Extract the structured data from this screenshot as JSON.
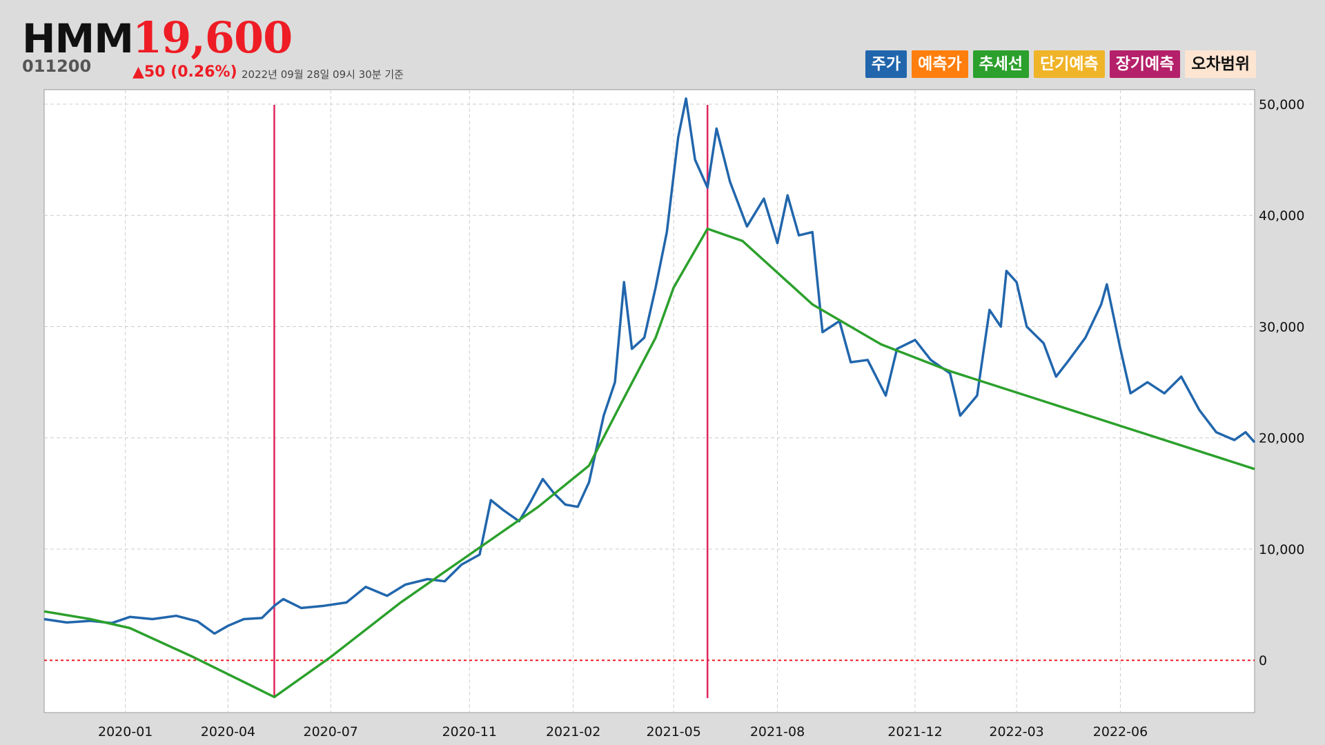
{
  "header": {
    "name": "HMM",
    "price": "19,600",
    "code": "011200",
    "change": "▲50 (0.26%)",
    "asof": "2022년 09월 28일 09시 30분 기준"
  },
  "legend": [
    {
      "label": "주가",
      "color": "#2166ac"
    },
    {
      "label": "예측가",
      "color": "#ff7f0e"
    },
    {
      "label": "추세선",
      "color": "#2ca02c"
    },
    {
      "label": "단기예측",
      "color": "#f0b429"
    },
    {
      "label": "장기예측",
      "color": "#b5206a"
    },
    {
      "label": "오차범위",
      "color": "#fde5d2"
    }
  ],
  "chart_data": {
    "type": "line",
    "x_ticks": [
      "2020-01",
      "2020-04",
      "2020-07",
      "2020-11",
      "2021-02",
      "2021-05",
      "2021-08",
      "2021-12",
      "2022-03",
      "2022-06"
    ],
    "y_ticks": [
      "0",
      "10,000",
      "20,000",
      "30,000",
      "40,000",
      "50,000"
    ],
    "ylim": [
      -4700,
      51300
    ],
    "xlim": [
      "2019-10-21",
      "2022-09-28"
    ],
    "grid": true,
    "y_axis_side": "right",
    "vertical_markers": [
      "2020-05-12",
      "2021-05-31"
    ],
    "zero_line": {
      "value": 0,
      "color": "#ee1c24",
      "style": "dotted"
    },
    "series": [
      {
        "name": "주가",
        "color": "#2166ac",
        "points": [
          [
            "2019-10-21",
            3700
          ],
          [
            "2019-11-10",
            3400
          ],
          [
            "2019-12-01",
            3550
          ],
          [
            "2019-12-20",
            3350
          ],
          [
            "2020-01-05",
            3900
          ],
          [
            "2020-01-25",
            3700
          ],
          [
            "2020-02-15",
            4000
          ],
          [
            "2020-03-05",
            3500
          ],
          [
            "2020-03-20",
            2400
          ],
          [
            "2020-04-01",
            3100
          ],
          [
            "2020-04-15",
            3700
          ],
          [
            "2020-05-01",
            3800
          ],
          [
            "2020-05-12",
            4900
          ],
          [
            "2020-05-20",
            5500
          ],
          [
            "2020-06-05",
            4700
          ],
          [
            "2020-06-25",
            4900
          ],
          [
            "2020-07-15",
            5200
          ],
          [
            "2020-08-01",
            6600
          ],
          [
            "2020-08-20",
            5800
          ],
          [
            "2020-09-05",
            6800
          ],
          [
            "2020-09-25",
            7300
          ],
          [
            "2020-10-10",
            7100
          ],
          [
            "2020-10-25",
            8600
          ],
          [
            "2020-11-10",
            9500
          ],
          [
            "2020-11-20",
            14400
          ],
          [
            "2020-12-01",
            13500
          ],
          [
            "2020-12-15",
            12500
          ],
          [
            "2020-12-25",
            14200
          ],
          [
            "2021-01-05",
            16300
          ],
          [
            "2021-01-15",
            15000
          ],
          [
            "2021-01-25",
            14000
          ],
          [
            "2021-02-05",
            13800
          ],
          [
            "2021-02-15",
            16000
          ],
          [
            "2021-02-28",
            22000
          ],
          [
            "2021-03-10",
            25000
          ],
          [
            "2021-03-18",
            34000
          ],
          [
            "2021-03-25",
            28000
          ],
          [
            "2021-04-05",
            29000
          ],
          [
            "2021-04-15",
            33500
          ],
          [
            "2021-04-25",
            38500
          ],
          [
            "2021-05-05",
            47000
          ],
          [
            "2021-05-12",
            50500
          ],
          [
            "2021-05-20",
            45000
          ],
          [
            "2021-05-31",
            42500
          ],
          [
            "2021-06-08",
            47800
          ],
          [
            "2021-06-20",
            43000
          ],
          [
            "2021-07-05",
            39000
          ],
          [
            "2021-07-20",
            41500
          ],
          [
            "2021-08-01",
            37500
          ],
          [
            "2021-08-10",
            41800
          ],
          [
            "2021-08-20",
            38200
          ],
          [
            "2021-09-01",
            38500
          ],
          [
            "2021-09-10",
            29500
          ],
          [
            "2021-09-25",
            30500
          ],
          [
            "2021-10-05",
            26800
          ],
          [
            "2021-10-20",
            27000
          ],
          [
            "2021-11-05",
            23800
          ],
          [
            "2021-11-15",
            28000
          ],
          [
            "2021-12-01",
            28800
          ],
          [
            "2021-12-15",
            27000
          ],
          [
            "2022-01-01",
            25800
          ],
          [
            "2022-01-10",
            22000
          ],
          [
            "2022-01-25",
            23800
          ],
          [
            "2022-02-05",
            31500
          ],
          [
            "2022-02-15",
            30000
          ],
          [
            "2022-02-20",
            35000
          ],
          [
            "2022-03-01",
            34000
          ],
          [
            "2022-03-10",
            30000
          ],
          [
            "2022-03-25",
            28500
          ],
          [
            "2022-04-05",
            25500
          ],
          [
            "2022-04-15",
            26800
          ],
          [
            "2022-05-01",
            29000
          ],
          [
            "2022-05-15",
            32000
          ],
          [
            "2022-05-20",
            33800
          ],
          [
            "2022-06-01",
            28000
          ],
          [
            "2022-06-10",
            24000
          ],
          [
            "2022-06-25",
            25000
          ],
          [
            "2022-07-10",
            24000
          ],
          [
            "2022-07-25",
            25500
          ],
          [
            "2022-08-10",
            22500
          ],
          [
            "2022-08-25",
            20500
          ],
          [
            "2022-09-10",
            19800
          ],
          [
            "2022-09-20",
            20500
          ],
          [
            "2022-09-28",
            19600
          ]
        ]
      },
      {
        "name": "추세선",
        "color": "#2ca02c",
        "points": [
          [
            "2019-10-21",
            4400
          ],
          [
            "2019-12-01",
            3700
          ],
          [
            "2020-01-05",
            2900
          ],
          [
            "2020-03-01",
            300
          ],
          [
            "2020-05-12",
            -3300
          ],
          [
            "2020-07-01",
            300
          ],
          [
            "2020-09-01",
            5200
          ],
          [
            "2020-11-01",
            9500
          ],
          [
            "2021-01-01",
            13800
          ],
          [
            "2021-02-15",
            17500
          ],
          [
            "2021-03-15",
            23000
          ],
          [
            "2021-04-15",
            29000
          ],
          [
            "2021-05-01",
            33500
          ],
          [
            "2021-05-31",
            38800
          ],
          [
            "2021-07-01",
            37700
          ],
          [
            "2021-09-01",
            32000
          ],
          [
            "2021-11-01",
            28400
          ],
          [
            "2022-01-01",
            26000
          ],
          [
            "2022-09-28",
            17200
          ]
        ]
      }
    ]
  }
}
